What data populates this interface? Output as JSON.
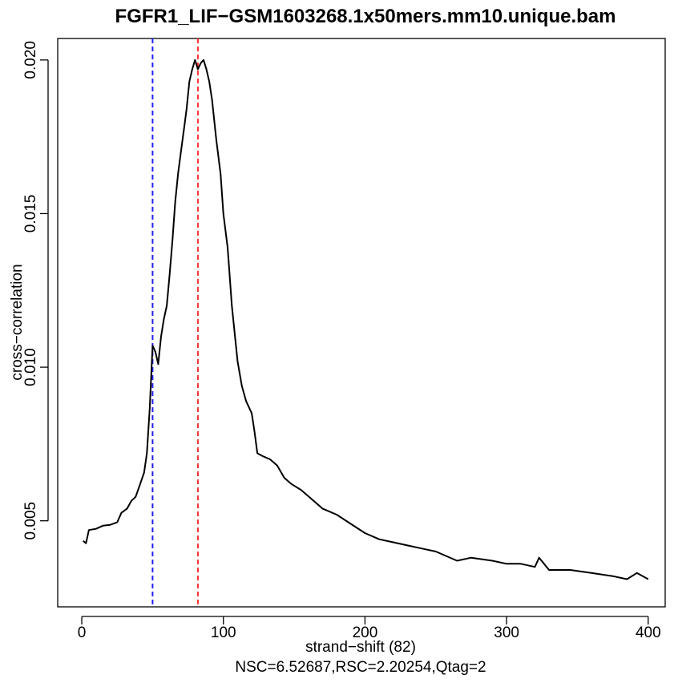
{
  "chart_data": {
    "type": "line",
    "title": "FGFR1_LIF−GSM1603268.1x50mers.mm10.unique.bam",
    "x_label": "strand−shift (82)",
    "subtitle": "NSC=6.52687,RSC=2.20254,Qtag=2",
    "y_label": "cross−correlation",
    "color": "#000000",
    "x": [
      1,
      3,
      5,
      10,
      15,
      20,
      25,
      28,
      32,
      35,
      38,
      41,
      44,
      46,
      48,
      50,
      52,
      54,
      56,
      58,
      60,
      62,
      64,
      66,
      68,
      70,
      72,
      74,
      76,
      78,
      80,
      82,
      84,
      86,
      88,
      90,
      92,
      95,
      98,
      100,
      103,
      106,
      110,
      113,
      116,
      120,
      122,
      124,
      128,
      133,
      138,
      143,
      148,
      155,
      160,
      170,
      180,
      190,
      200,
      210,
      220,
      230,
      240,
      250,
      265,
      275,
      290,
      300,
      310,
      320,
      323,
      330,
      345,
      360,
      375,
      385,
      392,
      400
    ],
    "values": [
      0.00435,
      0.00427,
      0.0047,
      0.00474,
      0.00484,
      0.00487,
      0.00495,
      0.00526,
      0.0054,
      0.00565,
      0.00578,
      0.00617,
      0.00657,
      0.0072,
      0.00865,
      0.0107,
      0.0105,
      0.0101,
      0.011,
      0.01157,
      0.012,
      0.013,
      0.0141,
      0.0154,
      0.0163,
      0.017,
      0.0177,
      0.0184,
      0.0193,
      0.0197,
      0.02,
      0.0197,
      0.0199,
      0.02,
      0.0197,
      0.0193,
      0.0187,
      0.0174,
      0.0163,
      0.015,
      0.0139,
      0.012,
      0.0102,
      0.0094,
      0.0089,
      0.0085,
      0.0079,
      0.0072,
      0.0071,
      0.007,
      0.0068,
      0.0064,
      0.0062,
      0.006,
      0.0058,
      0.0054,
      0.0052,
      0.0049,
      0.0046,
      0.0044,
      0.0043,
      0.0042,
      0.0041,
      0.004,
      0.0037,
      0.0038,
      0.0037,
      0.0036,
      0.0036,
      0.0035,
      0.0038,
      0.0034,
      0.0034,
      0.0033,
      0.0032,
      0.0031,
      0.0033,
      0.0031
    ],
    "reference_lines": [
      {
        "value": 50,
        "color": "#2020ff"
      },
      {
        "value": 82,
        "color": "#ff3030"
      }
    ],
    "xlim": [
      -17,
      412
    ],
    "xticks": [
      0,
      100,
      200,
      300,
      400
    ],
    "ylim": [
      0.0022,
      0.0207
    ],
    "yticks": [
      0.005,
      {
        "value": 0.01,
        "label": "0.010"
      },
      0.015,
      {
        "value": 0.02,
        "label": "0.020"
      }
    ]
  }
}
